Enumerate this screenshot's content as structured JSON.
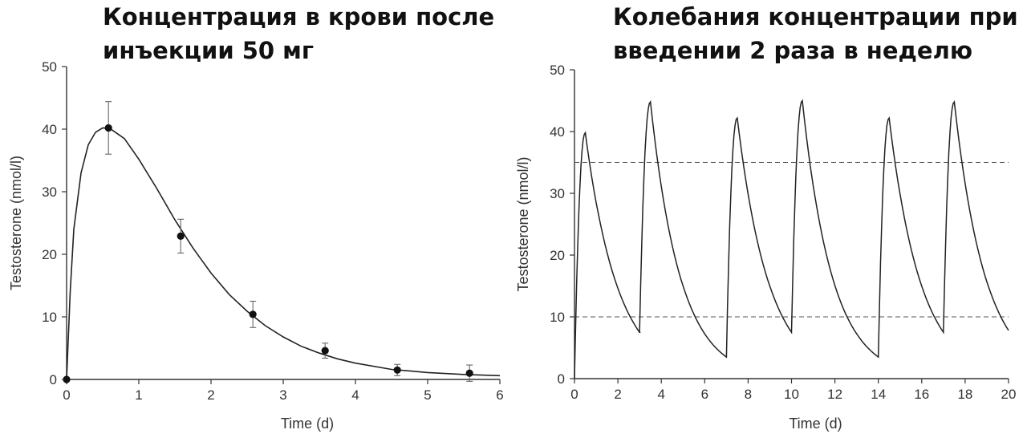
{
  "titles": {
    "left": "Концентрация в крови после инъекции 50 мг",
    "right": "Колебания концентрации при введении 2 раза в неделю"
  },
  "chart_data": [
    {
      "type": "line",
      "title": "Концентрация в крови после инъекции 50 мг",
      "xlabel": "Time (d)",
      "ylabel": "Testosterone (nmol/l)",
      "xlim": [
        0,
        6
      ],
      "ylim": [
        0,
        50
      ],
      "xticks": [
        0,
        1,
        2,
        3,
        4,
        5,
        6
      ],
      "yticks": [
        0,
        10,
        20,
        30,
        40,
        50
      ],
      "points": [
        {
          "x": 0,
          "y": 0,
          "err": 0
        },
        {
          "x": 0.58,
          "y": 40.2,
          "err": 4.2
        },
        {
          "x": 1.58,
          "y": 22.9,
          "err": 2.7
        },
        {
          "x": 2.58,
          "y": 10.4,
          "err": 2.1
        },
        {
          "x": 3.58,
          "y": 4.6,
          "err": 1.2
        },
        {
          "x": 4.58,
          "y": 1.5,
          "err": 0.9
        },
        {
          "x": 5.58,
          "y": 1.0,
          "err": 1.3
        }
      ],
      "curve": [
        [
          0,
          0
        ],
        [
          0.05,
          14
        ],
        [
          0.1,
          24
        ],
        [
          0.2,
          33
        ],
        [
          0.3,
          37.5
        ],
        [
          0.4,
          39.5
        ],
        [
          0.5,
          40.2
        ],
        [
          0.6,
          40.1
        ],
        [
          0.8,
          38.5
        ],
        [
          1.0,
          35.2
        ],
        [
          1.25,
          30.5
        ],
        [
          1.5,
          25.5
        ],
        [
          1.75,
          21.0
        ],
        [
          2.0,
          17.0
        ],
        [
          2.25,
          13.6
        ],
        [
          2.5,
          10.9
        ],
        [
          2.75,
          8.6
        ],
        [
          3.0,
          6.8
        ],
        [
          3.25,
          5.3
        ],
        [
          3.5,
          4.2
        ],
        [
          3.75,
          3.3
        ],
        [
          4.0,
          2.6
        ],
        [
          4.5,
          1.6
        ],
        [
          5.0,
          1.1
        ],
        [
          5.5,
          0.8
        ],
        [
          6.0,
          0.6
        ]
      ]
    },
    {
      "type": "line",
      "title": "Колебания концентрации при введении 2 раза в неделю",
      "xlabel": "Time (d)",
      "ylabel": "Testosterone (nmol/l)",
      "xlim": [
        0,
        20
      ],
      "ylim": [
        0,
        50
      ],
      "xticks": [
        0,
        2,
        4,
        6,
        8,
        10,
        12,
        14,
        16,
        18,
        20
      ],
      "yticks": [
        0,
        10,
        20,
        30,
        40,
        50
      ],
      "reference_lines": [
        10,
        35
      ],
      "doses": [
        {
          "t0": 0,
          "start": 0,
          "peak": 39.8,
          "end": 7.5,
          "duration": 3.0
        },
        {
          "t0": 3.0,
          "start": 7.5,
          "peak": 44.8,
          "end": 3.5,
          "duration": 4.0
        },
        {
          "t0": 7.0,
          "start": 3.5,
          "peak": 42.2,
          "end": 7.5,
          "duration": 3.0
        },
        {
          "t0": 10.0,
          "start": 7.5,
          "peak": 45.0,
          "end": 3.5,
          "duration": 4.0
        },
        {
          "t0": 14.0,
          "start": 3.5,
          "peak": 42.2,
          "end": 7.5,
          "duration": 3.0
        },
        {
          "t0": 17.0,
          "start": 7.5,
          "peak": 44.8,
          "end": 7.8,
          "duration": 3.0
        }
      ]
    }
  ]
}
